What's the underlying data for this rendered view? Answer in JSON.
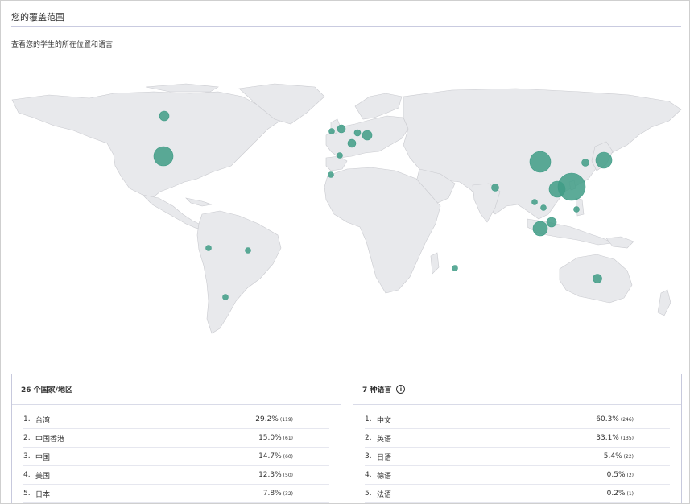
{
  "header": {
    "title": "您的覆盖范围",
    "subtitle": "查看您的学生的所在位置和语言"
  },
  "map": {
    "land_color": "#e8e9ec",
    "bubble_color": "#3f9c86"
  },
  "countries_card": {
    "heading": "26 个国家/地区",
    "rows": [
      {
        "rank": "1.",
        "name": "台湾",
        "percent": "29.2%",
        "count": "(119)"
      },
      {
        "rank": "2.",
        "name": "中国香港",
        "percent": "15.0%",
        "count": "(61)"
      },
      {
        "rank": "3.",
        "name": "中国",
        "percent": "14.7%",
        "count": "(60)"
      },
      {
        "rank": "4.",
        "name": "美国",
        "percent": "12.3%",
        "count": "(50)"
      },
      {
        "rank": "5.",
        "name": "日本",
        "percent": "7.8%",
        "count": "(32)"
      }
    ]
  },
  "languages_card": {
    "heading": "7 种语言",
    "info_icon": "info-icon",
    "rows": [
      {
        "rank": "1.",
        "name": "中文",
        "percent": "60.3%",
        "count": "(246)"
      },
      {
        "rank": "2.",
        "name": "英语",
        "percent": "33.1%",
        "count": "(135)"
      },
      {
        "rank": "3.",
        "name": "日语",
        "percent": "5.4%",
        "count": "(22)"
      },
      {
        "rank": "4.",
        "name": "德语",
        "percent": "0.5%",
        "count": "(2)"
      },
      {
        "rank": "5.",
        "name": "法语",
        "percent": "0.2%",
        "count": "(1)"
      }
    ]
  }
}
